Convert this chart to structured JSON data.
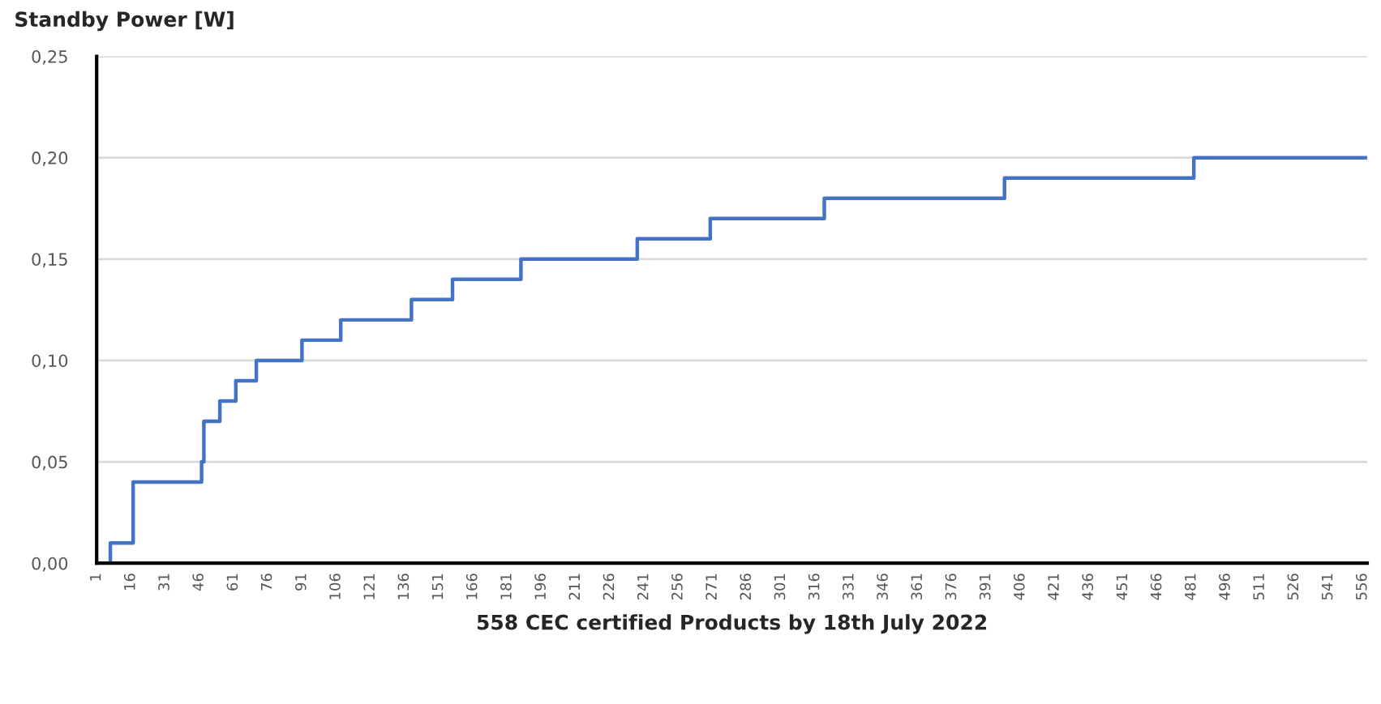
{
  "chart_data": {
    "type": "step",
    "ylabel": "Standby Power [W]",
    "xlabel": "558 CEC certified Products by 18th July 2022",
    "x": [
      1,
      7,
      17,
      47,
      48,
      55,
      62,
      71,
      91,
      108,
      139,
      157,
      187,
      238,
      270,
      320,
      399,
      482,
      558
    ],
    "series": [
      {
        "color": "#4472c4",
        "values": [
          0,
          0.01,
          0.04,
          0.05,
          0.07,
          0.08,
          0.09,
          0.1,
          0.11,
          0.12,
          0.13,
          0.14,
          0.15,
          0.16,
          0.17,
          0.18,
          0.19,
          0.2,
          0.2
        ]
      }
    ],
    "xlim": [
      1,
      558
    ],
    "xticks": [
      1,
      16,
      31,
      46,
      61,
      76,
      91,
      106,
      121,
      136,
      151,
      166,
      181,
      196,
      211,
      226,
      241,
      256,
      271,
      286,
      301,
      316,
      331,
      346,
      361,
      376,
      391,
      406,
      421,
      436,
      451,
      466,
      481,
      496,
      511,
      526,
      541,
      556
    ],
    "ylim": [
      0,
      0.25
    ],
    "yticks": [
      {
        "value": 0,
        "label": "0,00"
      },
      {
        "value": 0.05,
        "label": "0,05"
      },
      {
        "value": 0.1,
        "label": "0,10"
      },
      {
        "value": 0.15,
        "label": "0,15"
      },
      {
        "value": 0.2,
        "label": "0,20"
      },
      {
        "value": 0.25,
        "label": "0,25"
      }
    ],
    "grid": "y",
    "legend": false,
    "marker": "none",
    "line_style": "solid"
  }
}
